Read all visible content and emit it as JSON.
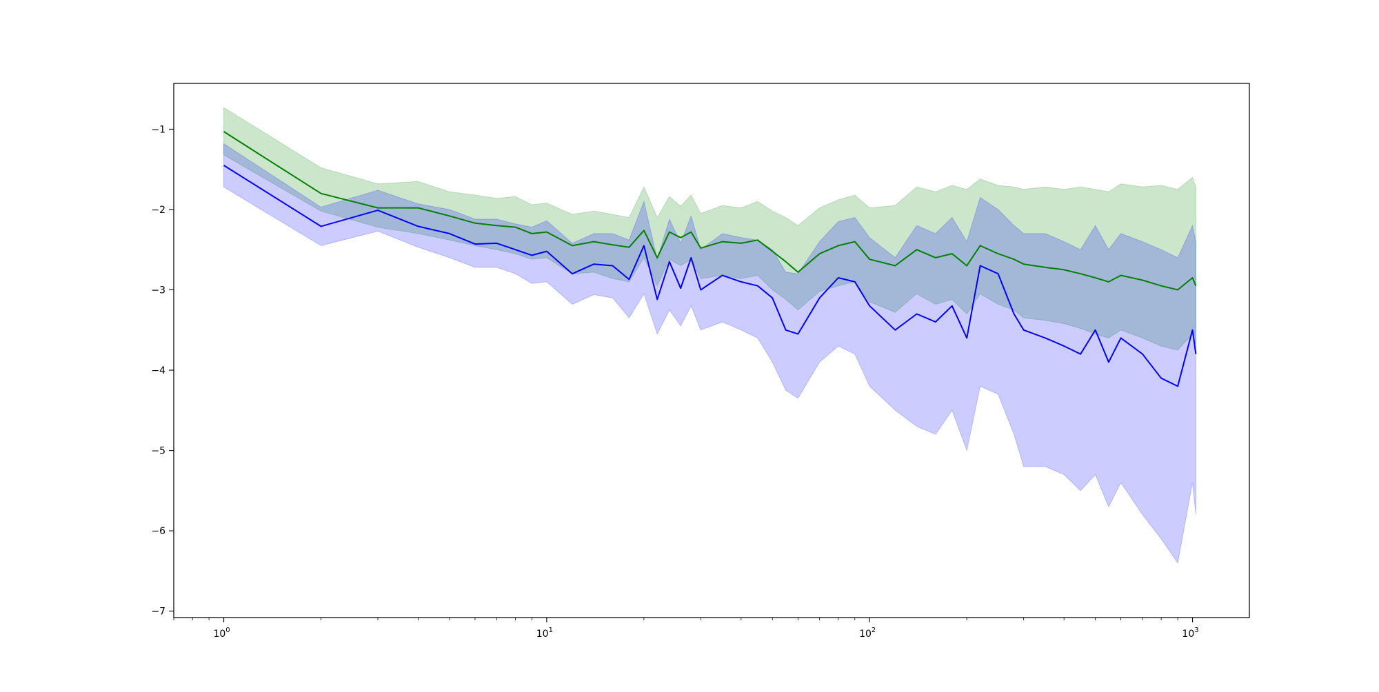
{
  "chart_data": {
    "type": "line",
    "title": "",
    "xlabel": "",
    "ylabel": "",
    "xscale": "log",
    "xlim": [
      0.7,
      1500
    ],
    "ylim": [
      -7.08,
      -0.43
    ],
    "x_ticks": [
      {
        "value": 1,
        "base": "10",
        "exp": "0"
      },
      {
        "value": 10,
        "base": "10",
        "exp": "1"
      },
      {
        "value": 100,
        "base": "10",
        "exp": "2"
      },
      {
        "value": 1000,
        "base": "10",
        "exp": "3"
      }
    ],
    "y_ticks": [
      {
        "value": -1,
        "label": "−1"
      },
      {
        "value": -2,
        "label": "−2"
      },
      {
        "value": -3,
        "label": "−3"
      },
      {
        "value": -4,
        "label": "−4"
      },
      {
        "value": -5,
        "label": "−5"
      },
      {
        "value": -6,
        "label": "−6"
      },
      {
        "value": -7,
        "label": "−7"
      }
    ],
    "grid": false,
    "legend": "none",
    "x": [
      1,
      2,
      3,
      4,
      5,
      6,
      7,
      8,
      9,
      10,
      12,
      14,
      16,
      18,
      20,
      22,
      24,
      26,
      28,
      30,
      35,
      40,
      45,
      50,
      55,
      60,
      70,
      80,
      90,
      100,
      120,
      140,
      160,
      180,
      200,
      220,
      250,
      280,
      300,
      350,
      400,
      450,
      500,
      550,
      600,
      700,
      800,
      900,
      1000,
      1024
    ],
    "series": [
      {
        "color": "#008000",
        "band_color": "#008000",
        "band_opacity": 0.2,
        "values": [
          -1.03,
          -1.8,
          -1.98,
          -1.98,
          -2.08,
          -2.17,
          -2.2,
          -2.22,
          -2.3,
          -2.28,
          -2.45,
          -2.4,
          -2.44,
          -2.47,
          -2.26,
          -2.6,
          -2.28,
          -2.35,
          -2.28,
          -2.48,
          -2.4,
          -2.42,
          -2.38,
          -2.52,
          -2.65,
          -2.78,
          -2.55,
          -2.45,
          -2.4,
          -2.62,
          -2.7,
          -2.5,
          -2.6,
          -2.55,
          -2.7,
          -2.45,
          -2.55,
          -2.62,
          -2.68,
          -2.72,
          -2.75,
          -2.8,
          -2.85,
          -2.9,
          -2.82,
          -2.88,
          -2.95,
          -3.0,
          -2.85,
          -2.95
        ],
        "lower": [
          -1.32,
          -2.02,
          -2.22,
          -2.3,
          -2.38,
          -2.45,
          -2.5,
          -2.55,
          -2.62,
          -2.6,
          -2.8,
          -2.78,
          -2.86,
          -2.9,
          -2.6,
          -2.95,
          -2.62,
          -2.7,
          -2.62,
          -2.86,
          -2.82,
          -2.86,
          -2.82,
          -3.0,
          -3.12,
          -3.25,
          -3.02,
          -2.95,
          -2.9,
          -3.15,
          -3.28,
          -3.05,
          -3.18,
          -3.12,
          -3.3,
          -3.05,
          -3.18,
          -3.25,
          -3.35,
          -3.38,
          -3.42,
          -3.48,
          -3.55,
          -3.6,
          -3.5,
          -3.6,
          -3.7,
          -3.75,
          -3.55,
          -3.68
        ],
        "upper": [
          -0.73,
          -1.48,
          -1.68,
          -1.65,
          -1.78,
          -1.82,
          -1.86,
          -1.84,
          -1.94,
          -1.92,
          -2.06,
          -2.02,
          -2.06,
          -2.1,
          -1.72,
          -2.1,
          -1.84,
          -1.96,
          -1.82,
          -2.05,
          -1.95,
          -1.98,
          -1.9,
          -2.02,
          -2.1,
          -2.2,
          -1.98,
          -1.88,
          -1.82,
          -1.98,
          -1.95,
          -1.72,
          -1.78,
          -1.7,
          -1.75,
          -1.62,
          -1.7,
          -1.72,
          -1.75,
          -1.72,
          -1.75,
          -1.72,
          -1.75,
          -1.78,
          -1.68,
          -1.72,
          -1.7,
          -1.75,
          -1.6,
          -1.72
        ]
      },
      {
        "color": "#0000ff",
        "band_color": "#0000ff",
        "band_opacity": 0.2,
        "values": [
          -1.45,
          -2.21,
          -2.01,
          -2.21,
          -2.3,
          -2.43,
          -2.42,
          -2.5,
          -2.57,
          -2.52,
          -2.8,
          -2.68,
          -2.7,
          -2.87,
          -2.45,
          -3.12,
          -2.65,
          -2.98,
          -2.6,
          -3.0,
          -2.82,
          -2.9,
          -2.95,
          -3.1,
          -3.5,
          -3.55,
          -3.1,
          -2.85,
          -2.9,
          -3.2,
          -3.5,
          -3.3,
          -3.4,
          -3.2,
          -3.6,
          -2.7,
          -2.8,
          -3.3,
          -3.5,
          -3.6,
          -3.7,
          -3.8,
          -3.5,
          -3.9,
          -3.6,
          -3.8,
          -4.1,
          -4.2,
          -3.5,
          -3.8
        ],
        "lower": [
          -1.72,
          -2.45,
          -2.27,
          -2.47,
          -2.6,
          -2.72,
          -2.72,
          -2.8,
          -2.92,
          -2.9,
          -3.18,
          -3.06,
          -3.1,
          -3.35,
          -3.05,
          -3.55,
          -3.25,
          -3.45,
          -3.2,
          -3.5,
          -3.4,
          -3.5,
          -3.6,
          -3.9,
          -4.25,
          -4.35,
          -3.9,
          -3.7,
          -3.8,
          -4.2,
          -4.5,
          -4.7,
          -4.8,
          -4.5,
          -5.0,
          -4.2,
          -4.3,
          -4.8,
          -5.2,
          -5.2,
          -5.3,
          -5.5,
          -5.3,
          -5.7,
          -5.4,
          -5.8,
          -6.1,
          -6.4,
          -5.4,
          -5.8
        ],
        "upper": [
          -1.18,
          -1.97,
          -1.76,
          -1.93,
          -2.0,
          -2.12,
          -2.12,
          -2.18,
          -2.22,
          -2.14,
          -2.42,
          -2.3,
          -2.3,
          -2.38,
          -1.9,
          -2.62,
          -2.12,
          -2.42,
          -2.08,
          -2.5,
          -2.3,
          -2.35,
          -2.38,
          -2.5,
          -2.78,
          -2.8,
          -2.4,
          -2.15,
          -2.1,
          -2.35,
          -2.6,
          -2.2,
          -2.3,
          -2.1,
          -2.4,
          -1.85,
          -2.0,
          -2.2,
          -2.3,
          -2.3,
          -2.4,
          -2.5,
          -2.2,
          -2.5,
          -2.3,
          -2.4,
          -2.5,
          -2.6,
          -2.2,
          -2.4
        ]
      }
    ]
  }
}
